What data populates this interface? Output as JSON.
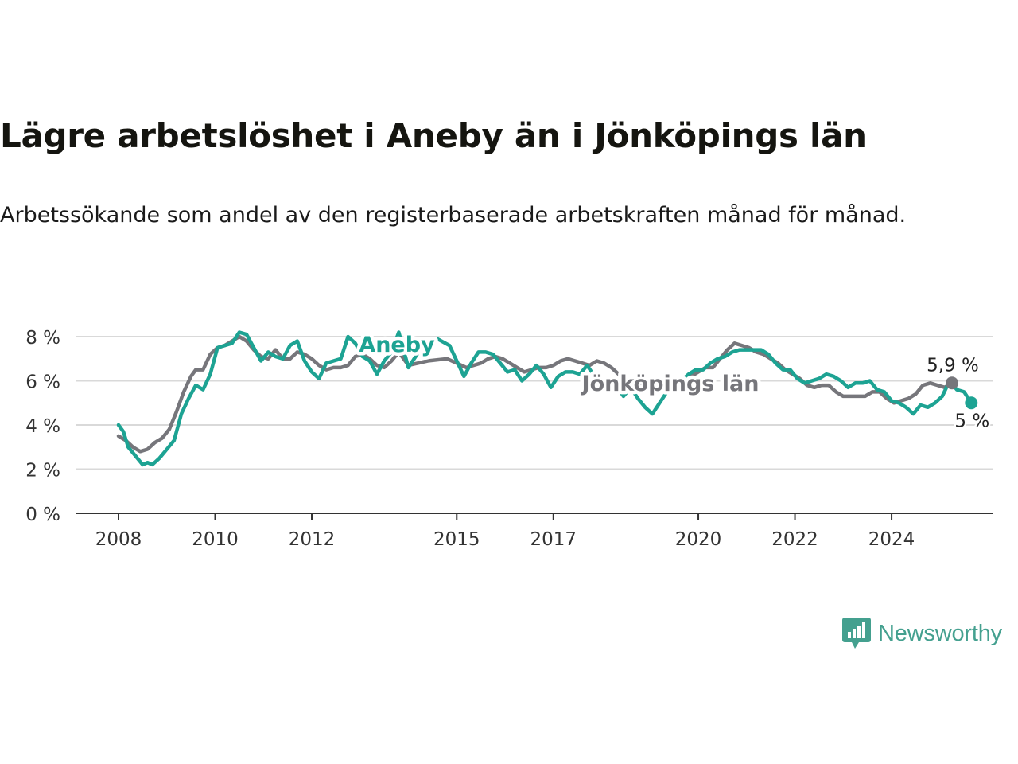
{
  "title": "Lägre arbetslöshet i Aneby än i Jönköpings län",
  "subtitle": "Arbetssökande som andel av den registerbaserade arbetskraften månad för månad.",
  "brand": {
    "name": "Newsworthy",
    "color": "#44a08f",
    "icon": "bar-chart-speech-bubble-icon"
  },
  "chart_data": {
    "type": "line",
    "ylim": [
      0,
      8.5
    ],
    "xlim": [
      2008,
      2025.4
    ],
    "y_ticks": [
      0,
      2,
      4,
      6,
      8
    ],
    "y_tick_labels": [
      "0 %",
      "2 %",
      "4 %",
      "6 %",
      "8 %"
    ],
    "x_ticks": [
      2008,
      2010,
      2012,
      2015,
      2017,
      2020,
      2022,
      2024
    ],
    "x_tick_labels": [
      "2008",
      "2010",
      "2012",
      "2015",
      "2017",
      "2020",
      "2022",
      "2024"
    ],
    "grid": "horizontal",
    "series": [
      {
        "name": "Jönköpings län",
        "color": "#76767b",
        "end_label": "5,9 %",
        "points": [
          [
            2008.0,
            3.5
          ],
          [
            2008.15,
            3.3
          ],
          [
            2008.3,
            3.0
          ],
          [
            2008.45,
            2.8
          ],
          [
            2008.6,
            2.9
          ],
          [
            2008.75,
            3.2
          ],
          [
            2008.9,
            3.4
          ],
          [
            2009.05,
            3.8
          ],
          [
            2009.2,
            4.6
          ],
          [
            2009.35,
            5.5
          ],
          [
            2009.5,
            6.2
          ],
          [
            2009.6,
            6.5
          ],
          [
            2009.75,
            6.5
          ],
          [
            2009.9,
            7.2
          ],
          [
            2010.05,
            7.5
          ],
          [
            2010.2,
            7.6
          ],
          [
            2010.35,
            7.8
          ],
          [
            2010.5,
            8.0
          ],
          [
            2010.65,
            7.8
          ],
          [
            2010.8,
            7.4
          ],
          [
            2010.95,
            7.1
          ],
          [
            2011.1,
            7.0
          ],
          [
            2011.25,
            7.4
          ],
          [
            2011.4,
            7.0
          ],
          [
            2011.55,
            7.0
          ],
          [
            2011.7,
            7.3
          ],
          [
            2011.85,
            7.2
          ],
          [
            2012.0,
            7.0
          ],
          [
            2012.15,
            6.7
          ],
          [
            2012.3,
            6.5
          ],
          [
            2012.45,
            6.6
          ],
          [
            2012.6,
            6.6
          ],
          [
            2012.75,
            6.7
          ],
          [
            2012.9,
            7.1
          ],
          [
            2013.05,
            7.2
          ],
          [
            2013.2,
            7.0
          ],
          [
            2013.35,
            6.7
          ],
          [
            2013.5,
            6.6
          ],
          [
            2013.65,
            6.9
          ],
          [
            2013.8,
            7.3
          ],
          [
            2014.0,
            6.7
          ],
          [
            2014.4,
            6.9
          ],
          [
            2014.8,
            7.0
          ],
          [
            2015.0,
            6.8
          ],
          [
            2015.2,
            6.6
          ],
          [
            2015.35,
            6.7
          ],
          [
            2015.5,
            6.8
          ],
          [
            2015.65,
            7.0
          ],
          [
            2015.8,
            7.1
          ],
          [
            2015.95,
            7.0
          ],
          [
            2016.1,
            6.8
          ],
          [
            2016.25,
            6.6
          ],
          [
            2016.4,
            6.4
          ],
          [
            2016.55,
            6.5
          ],
          [
            2016.7,
            6.6
          ],
          [
            2016.85,
            6.6
          ],
          [
            2017.0,
            6.7
          ],
          [
            2017.15,
            6.9
          ],
          [
            2017.3,
            7.0
          ],
          [
            2017.45,
            6.9
          ],
          [
            2017.6,
            6.8
          ],
          [
            2017.75,
            6.7
          ],
          [
            2017.9,
            6.9
          ],
          [
            2018.05,
            6.8
          ],
          [
            2018.2,
            6.6
          ],
          [
            2018.35,
            6.3
          ],
          [
            2018.5,
            6.1
          ],
          [
            2018.65,
            6.0
          ],
          [
            2018.8,
            5.8
          ],
          [
            2018.95,
            5.7
          ],
          [
            2019.1,
            5.6
          ],
          [
            2019.25,
            5.6
          ],
          [
            2019.4,
            5.7
          ],
          [
            2019.55,
            5.8
          ],
          [
            2019.7,
            6.0
          ],
          [
            2019.85,
            6.2
          ],
          [
            2020.0,
            6.4
          ],
          [
            2020.15,
            6.6
          ],
          [
            2020.3,
            6.6
          ],
          [
            2020.45,
            7.0
          ],
          [
            2020.6,
            7.4
          ],
          [
            2020.75,
            7.7
          ],
          [
            2020.9,
            7.6
          ],
          [
            2021.05,
            7.5
          ],
          [
            2021.2,
            7.3
          ],
          [
            2021.35,
            7.2
          ],
          [
            2021.5,
            7.0
          ],
          [
            2021.65,
            6.8
          ],
          [
            2021.8,
            6.5
          ],
          [
            2021.95,
            6.3
          ],
          [
            2022.1,
            6.1
          ],
          [
            2022.25,
            5.8
          ],
          [
            2022.4,
            5.7
          ],
          [
            2022.55,
            5.8
          ],
          [
            2022.7,
            5.8
          ],
          [
            2022.85,
            5.5
          ],
          [
            2023.0,
            5.3
          ],
          [
            2023.15,
            5.3
          ],
          [
            2023.3,
            5.3
          ],
          [
            2023.45,
            5.3
          ],
          [
            2023.6,
            5.5
          ],
          [
            2023.75,
            5.5
          ],
          [
            2023.9,
            5.2
          ],
          [
            2024.05,
            5.0
          ],
          [
            2024.2,
            5.1
          ],
          [
            2024.35,
            5.2
          ],
          [
            2024.5,
            5.4
          ],
          [
            2024.65,
            5.8
          ],
          [
            2024.8,
            5.9
          ],
          [
            2024.95,
            5.8
          ],
          [
            2025.1,
            5.7
          ],
          [
            2025.25,
            5.9
          ]
        ]
      },
      {
        "name": "Aneby",
        "color": "#1da393",
        "end_label": "5 %",
        "points": [
          [
            2008.0,
            4.0
          ],
          [
            2008.1,
            3.7
          ],
          [
            2008.2,
            3.0
          ],
          [
            2008.35,
            2.6
          ],
          [
            2008.5,
            2.2
          ],
          [
            2008.6,
            2.3
          ],
          [
            2008.7,
            2.2
          ],
          [
            2008.85,
            2.5
          ],
          [
            2009.0,
            2.9
          ],
          [
            2009.15,
            3.3
          ],
          [
            2009.3,
            4.5
          ],
          [
            2009.45,
            5.2
          ],
          [
            2009.6,
            5.8
          ],
          [
            2009.75,
            5.6
          ],
          [
            2009.9,
            6.3
          ],
          [
            2010.05,
            7.5
          ],
          [
            2010.2,
            7.6
          ],
          [
            2010.35,
            7.7
          ],
          [
            2010.5,
            8.2
          ],
          [
            2010.65,
            8.1
          ],
          [
            2010.8,
            7.5
          ],
          [
            2010.95,
            6.9
          ],
          [
            2011.1,
            7.3
          ],
          [
            2011.25,
            7.1
          ],
          [
            2011.4,
            7.0
          ],
          [
            2011.55,
            7.6
          ],
          [
            2011.7,
            7.8
          ],
          [
            2011.85,
            6.9
          ],
          [
            2012.0,
            6.4
          ],
          [
            2012.15,
            6.1
          ],
          [
            2012.3,
            6.8
          ],
          [
            2012.45,
            6.9
          ],
          [
            2012.6,
            7.0
          ],
          [
            2012.75,
            8.0
          ],
          [
            2012.9,
            7.7
          ],
          [
            2013.05,
            7.1
          ],
          [
            2013.2,
            6.9
          ],
          [
            2013.35,
            6.3
          ],
          [
            2013.5,
            6.9
          ],
          [
            2013.65,
            7.3
          ],
          [
            2013.8,
            8.2
          ],
          [
            2014.0,
            6.6
          ],
          [
            2014.3,
            7.6
          ],
          [
            2014.6,
            7.9
          ],
          [
            2014.85,
            7.6
          ],
          [
            2015.0,
            6.9
          ],
          [
            2015.15,
            6.2
          ],
          [
            2015.3,
            6.8
          ],
          [
            2015.45,
            7.3
          ],
          [
            2015.6,
            7.3
          ],
          [
            2015.75,
            7.2
          ],
          [
            2015.9,
            6.8
          ],
          [
            2016.05,
            6.4
          ],
          [
            2016.2,
            6.5
          ],
          [
            2016.35,
            6.0
          ],
          [
            2016.5,
            6.3
          ],
          [
            2016.65,
            6.7
          ],
          [
            2016.8,
            6.3
          ],
          [
            2016.95,
            5.7
          ],
          [
            2017.1,
            6.2
          ],
          [
            2017.25,
            6.4
          ],
          [
            2017.4,
            6.4
          ],
          [
            2017.55,
            6.3
          ],
          [
            2017.7,
            6.7
          ],
          [
            2017.85,
            6.2
          ],
          [
            2018.0,
            6.1
          ],
          [
            2018.15,
            6.0
          ],
          [
            2018.3,
            5.8
          ],
          [
            2018.45,
            5.3
          ],
          [
            2018.6,
            5.7
          ],
          [
            2018.75,
            5.2
          ],
          [
            2018.9,
            4.8
          ],
          [
            2019.05,
            4.5
          ],
          [
            2019.2,
            5.0
          ],
          [
            2019.35,
            5.5
          ],
          [
            2019.5,
            5.9
          ],
          [
            2019.65,
            6.0
          ],
          [
            2019.8,
            6.3
          ],
          [
            2019.95,
            6.5
          ],
          [
            2020.1,
            6.5
          ],
          [
            2020.25,
            6.8
          ],
          [
            2020.4,
            7.0
          ],
          [
            2020.55,
            7.1
          ],
          [
            2020.7,
            7.3
          ],
          [
            2020.85,
            7.4
          ],
          [
            2021.0,
            7.4
          ],
          [
            2021.15,
            7.4
          ],
          [
            2021.3,
            7.4
          ],
          [
            2021.45,
            7.2
          ],
          [
            2021.6,
            6.8
          ],
          [
            2021.75,
            6.5
          ],
          [
            2021.9,
            6.5
          ],
          [
            2022.05,
            6.1
          ],
          [
            2022.2,
            5.9
          ],
          [
            2022.35,
            6.0
          ],
          [
            2022.5,
            6.1
          ],
          [
            2022.65,
            6.3
          ],
          [
            2022.8,
            6.2
          ],
          [
            2022.95,
            6.0
          ],
          [
            2023.1,
            5.7
          ],
          [
            2023.25,
            5.9
          ],
          [
            2023.4,
            5.9
          ],
          [
            2023.55,
            6.0
          ],
          [
            2023.7,
            5.6
          ],
          [
            2023.85,
            5.5
          ],
          [
            2024.0,
            5.1
          ],
          [
            2024.15,
            5.0
          ],
          [
            2024.3,
            4.8
          ],
          [
            2024.45,
            4.5
          ],
          [
            2024.6,
            4.9
          ],
          [
            2024.75,
            4.8
          ],
          [
            2024.9,
            5.0
          ],
          [
            2025.05,
            5.3
          ],
          [
            2025.2,
            6.0
          ],
          [
            2025.35,
            5.6
          ],
          [
            2025.5,
            5.5
          ],
          [
            2025.65,
            5.0
          ]
        ]
      }
    ],
    "annotations": [
      {
        "text": "Aneby",
        "series": "Aneby"
      },
      {
        "text": "Jönköpings län",
        "series": "Jönköpings län"
      }
    ]
  }
}
